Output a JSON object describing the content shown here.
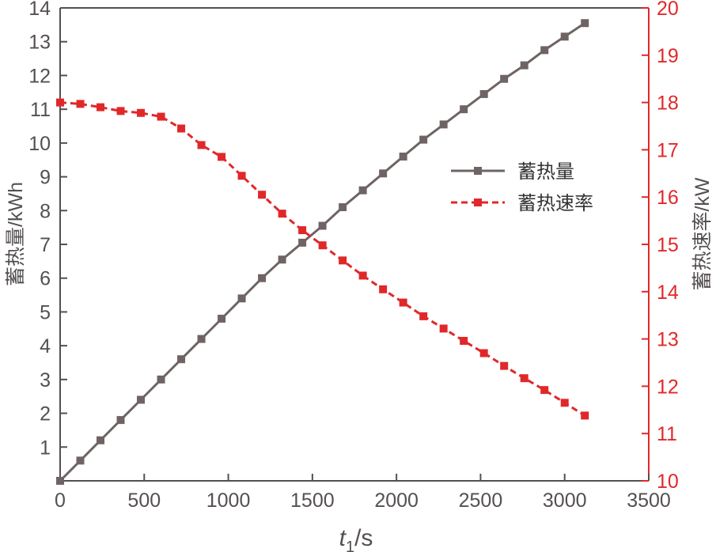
{
  "colors": {
    "axis_left": "#555050",
    "axis_right": "#e0282a",
    "series_storage": "#6e6464",
    "series_rate": "#e0282a",
    "frame": "#555050"
  },
  "chart_data": {
    "type": "line",
    "xlabel_main": "t",
    "xlabel_sub": "1",
    "xlabel_unit": "/s",
    "ylabel_left": "蓄热量/kWh",
    "ylabel_right": "蓄热速率/kW",
    "xlim": [
      0,
      3500
    ],
    "ylim_left": [
      0,
      14
    ],
    "ylim_right": [
      10,
      20
    ],
    "xticks": [
      0,
      500,
      1000,
      1500,
      2000,
      2500,
      3000,
      3500
    ],
    "yticks_left": [
      1,
      2,
      3,
      4,
      5,
      6,
      7,
      8,
      9,
      10,
      11,
      12,
      13,
      14
    ],
    "yticks_right": [
      10,
      11,
      12,
      13,
      14,
      15,
      16,
      17,
      18,
      19,
      20
    ],
    "legend_position": "right-middle",
    "x": [
      0,
      120,
      240,
      360,
      480,
      600,
      720,
      840,
      960,
      1080,
      1200,
      1320,
      1440,
      1560,
      1680,
      1800,
      1920,
      2040,
      2160,
      2280,
      2400,
      2520,
      2640,
      2760,
      2880,
      3000,
      3120
    ],
    "series": [
      {
        "name": "蓄热量",
        "axis": "left",
        "style": "solid",
        "values": [
          0.0,
          0.6,
          1.2,
          1.8,
          2.4,
          3.0,
          3.6,
          4.2,
          4.8,
          5.4,
          6.0,
          6.55,
          7.05,
          7.55,
          8.1,
          8.6,
          9.1,
          9.6,
          10.1,
          10.55,
          11.0,
          11.45,
          11.9,
          12.3,
          12.75,
          13.15,
          13.55
        ]
      },
      {
        "name": "蓄热速率",
        "axis": "right",
        "style": "dashed",
        "values": [
          18.0,
          17.97,
          17.9,
          17.82,
          17.78,
          17.7,
          17.45,
          17.1,
          16.85,
          16.45,
          16.05,
          15.65,
          15.3,
          14.98,
          14.66,
          14.34,
          14.05,
          13.77,
          13.48,
          13.22,
          12.96,
          12.7,
          12.43,
          12.17,
          11.92,
          11.65,
          11.38
        ]
      }
    ]
  }
}
